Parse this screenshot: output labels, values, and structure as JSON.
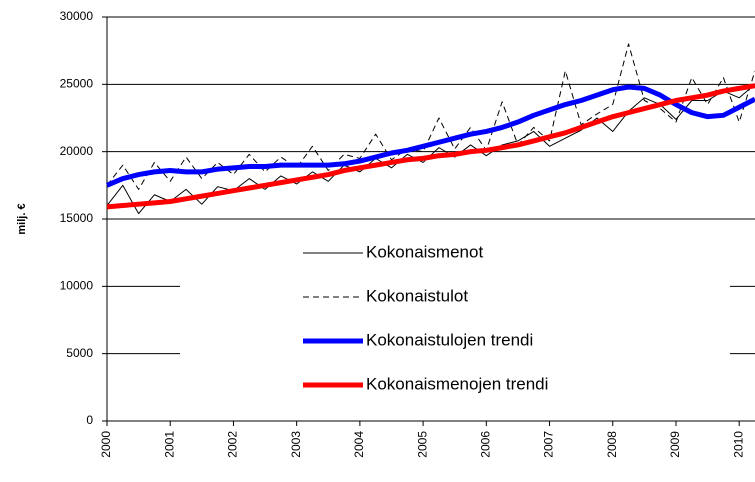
{
  "chart_data": {
    "type": "line",
    "y_label": "milj. €",
    "x": [
      2000,
      2000.25,
      2000.5,
      2000.75,
      2001,
      2001.25,
      2001.5,
      2001.75,
      2002,
      2002.25,
      2002.5,
      2002.75,
      2003,
      2003.25,
      2003.5,
      2003.75,
      2004,
      2004.25,
      2004.5,
      2004.75,
      2005,
      2005.25,
      2005.5,
      2005.75,
      2006,
      2006.25,
      2006.5,
      2006.75,
      2007,
      2007.25,
      2007.5,
      2007.75,
      2008,
      2008.25,
      2008.5,
      2008.75,
      2009,
      2009.25,
      2009.5,
      2009.75,
      2010,
      2010.25
    ],
    "series": [
      {
        "name": "Kokonaismenot",
        "color": "#000000",
        "style": "solid",
        "width": 1,
        "values": [
          16000,
          17500,
          15400,
          16800,
          16300,
          17200,
          16100,
          17400,
          17100,
          18000,
          17200,
          18200,
          17600,
          18500,
          17800,
          19000,
          18500,
          19500,
          18800,
          19800,
          19200,
          20300,
          19600,
          20500,
          19700,
          20500,
          20800,
          21500,
          20400,
          21000,
          21600,
          22500,
          21500,
          23000,
          24000,
          23500,
          22400,
          23800,
          23800,
          24500,
          24000,
          25000
        ]
      },
      {
        "name": "Kokonaistulot",
        "color": "#000000",
        "style": "dashed",
        "width": 1,
        "values": [
          17500,
          19000,
          17200,
          19200,
          17800,
          19600,
          18000,
          19200,
          18300,
          19800,
          18500,
          19600,
          18800,
          20400,
          18600,
          19800,
          19500,
          21300,
          19400,
          20200,
          20000,
          22500,
          20200,
          21800,
          20100,
          23700,
          20500,
          21800,
          20800,
          26000,
          22000,
          22800,
          23500,
          28000,
          23800,
          23200,
          22200,
          25500,
          23500,
          25500,
          22200,
          26000
        ]
      },
      {
        "name": "Kokonaistulojen trendi",
        "color": "#0000ff",
        "style": "solid",
        "width": 5,
        "values": [
          17500,
          18000,
          18300,
          18500,
          18600,
          18500,
          18500,
          18700,
          18800,
          18900,
          18900,
          19000,
          19000,
          19000,
          19000,
          19100,
          19300,
          19600,
          19900,
          20100,
          20400,
          20700,
          21000,
          21300,
          21500,
          21800,
          22200,
          22700,
          23100,
          23500,
          23800,
          24200,
          24600,
          24800,
          24700,
          24200,
          23500,
          22900,
          22600,
          22700,
          23300,
          23900
        ]
      },
      {
        "name": "Kokonaismenojen trendi",
        "color": "#ff0000",
        "style": "solid",
        "width": 5,
        "values": [
          15900,
          16000,
          16100,
          16200,
          16300,
          16500,
          16700,
          16900,
          17100,
          17300,
          17500,
          17700,
          17900,
          18100,
          18300,
          18600,
          18800,
          19000,
          19200,
          19400,
          19500,
          19700,
          19800,
          20000,
          20100,
          20300,
          20500,
          20800,
          21100,
          21400,
          21800,
          22200,
          22600,
          22900,
          23200,
          23500,
          23800,
          24000,
          24200,
          24500,
          24700,
          24900
        ]
      }
    ],
    "xlim": [
      2000,
      2010.25
    ],
    "ylim": [
      0,
      30000
    ],
    "xticks": [
      2000,
      2001,
      2002,
      2003,
      2004,
      2005,
      2006,
      2007,
      2008,
      2009,
      2010
    ],
    "yticks": [
      0,
      5000,
      10000,
      15000,
      20000,
      25000,
      30000
    ],
    "grid": true,
    "legend": "center"
  }
}
